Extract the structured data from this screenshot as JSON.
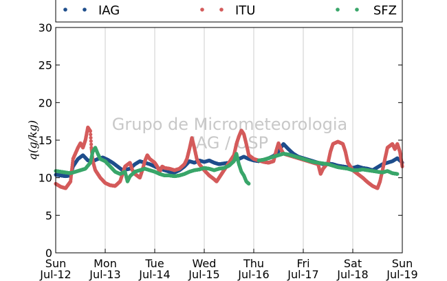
{
  "chart_data": {
    "type": "scatter",
    "title": "",
    "xlabel": "",
    "ylabel": "q(g/kg)",
    "ylim": [
      0,
      30
    ],
    "yticks": [
      0,
      5,
      10,
      15,
      20,
      25,
      30
    ],
    "xlim": [
      0,
      7
    ],
    "xticks": [
      {
        "x": 0,
        "day": "Sun",
        "date": "Jul-12"
      },
      {
        "x": 1,
        "day": "Mon",
        "date": "Jul-13"
      },
      {
        "x": 2,
        "day": "Tue",
        "date": "Jul-14"
      },
      {
        "x": 3,
        "day": "Wed",
        "date": "Jul-15"
      },
      {
        "x": 4,
        "day": "Thu",
        "date": "Jul-16"
      },
      {
        "x": 5,
        "day": "Fri",
        "date": "Jul-17"
      },
      {
        "x": 6,
        "day": "Sat",
        "date": "Jul-18"
      },
      {
        "x": 7,
        "day": "Sun",
        "date": "Jul-19"
      }
    ],
    "grid": "vertical",
    "legend_position": "top",
    "watermark": [
      "Grupo de Micrometeorologia",
      "IAG / USP"
    ],
    "series": [
      {
        "name": "IAG",
        "color": "#1f4e8c",
        "points": [
          [
            0,
            10.4
          ],
          [
            0.2,
            10.2
          ],
          [
            0.3,
            10.3
          ],
          [
            0.35,
            11.5
          ],
          [
            0.45,
            12.5
          ],
          [
            0.55,
            13.0
          ],
          [
            0.65,
            12.3
          ],
          [
            0.75,
            12.2
          ],
          [
            0.85,
            12.5
          ],
          [
            0.95,
            12.7
          ],
          [
            1.05,
            12.4
          ],
          [
            1.15,
            12.0
          ],
          [
            1.25,
            11.5
          ],
          [
            1.35,
            11.0
          ],
          [
            1.5,
            11.2
          ],
          [
            1.6,
            11.8
          ],
          [
            1.7,
            12.2
          ],
          [
            1.8,
            12.0
          ],
          [
            1.9,
            11.8
          ],
          [
            2.0,
            11.5
          ],
          [
            2.1,
            11.2
          ],
          [
            2.2,
            11.0
          ],
          [
            2.3,
            10.8
          ],
          [
            2.4,
            10.7
          ],
          [
            2.5,
            11.0
          ],
          [
            2.6,
            11.5
          ],
          [
            2.7,
            12.2
          ],
          [
            2.8,
            12.0
          ],
          [
            2.9,
            12.3
          ],
          [
            3.0,
            12.1
          ],
          [
            3.1,
            12.3
          ],
          [
            3.2,
            12.0
          ],
          [
            3.3,
            11.8
          ],
          [
            3.4,
            11.9
          ],
          [
            3.5,
            12.0
          ],
          [
            3.6,
            12.3
          ],
          [
            3.65,
            12.6
          ],
          [
            3.7,
            12.5
          ],
          [
            3.8,
            12.8
          ],
          [
            3.9,
            12.5
          ],
          [
            4.0,
            12.3
          ],
          [
            4.1,
            12.2
          ],
          [
            4.2,
            12.4
          ],
          [
            4.3,
            12.6
          ],
          [
            4.4,
            12.9
          ],
          [
            4.5,
            13.5
          ],
          [
            4.6,
            14.5
          ],
          [
            4.7,
            13.8
          ],
          [
            4.8,
            13.2
          ],
          [
            4.9,
            12.8
          ],
          [
            5.0,
            12.6
          ],
          [
            5.1,
            12.4
          ],
          [
            5.2,
            12.2
          ],
          [
            5.3,
            12.0
          ],
          [
            5.4,
            11.8
          ],
          [
            5.5,
            11.9
          ],
          [
            5.6,
            11.8
          ],
          [
            5.7,
            11.6
          ],
          [
            5.8,
            11.5
          ],
          [
            5.9,
            11.4
          ],
          [
            6.0,
            11.3
          ],
          [
            6.1,
            11.5
          ],
          [
            6.2,
            11.3
          ],
          [
            6.3,
            11.2
          ],
          [
            6.4,
            11.0
          ],
          [
            6.5,
            11.4
          ],
          [
            6.6,
            11.8
          ],
          [
            6.7,
            12.0
          ],
          [
            6.8,
            12.2
          ],
          [
            6.9,
            12.6
          ],
          [
            7.0,
            12.0
          ]
        ]
      },
      {
        "name": "ITU",
        "color": "#d45b5b",
        "points": [
          [
            0,
            9.2
          ],
          [
            0.1,
            8.8
          ],
          [
            0.2,
            8.6
          ],
          [
            0.3,
            9.5
          ],
          [
            0.35,
            12.5
          ],
          [
            0.45,
            14.0
          ],
          [
            0.5,
            14.6
          ],
          [
            0.55,
            14.0
          ],
          [
            0.6,
            15.0
          ],
          [
            0.65,
            16.7
          ],
          [
            0.7,
            16.2
          ],
          [
            0.72,
            14.0
          ],
          [
            0.75,
            12.2
          ],
          [
            0.8,
            11.0
          ],
          [
            0.9,
            10.0
          ],
          [
            1.0,
            9.3
          ],
          [
            1.1,
            9.0
          ],
          [
            1.2,
            8.9
          ],
          [
            1.3,
            9.5
          ],
          [
            1.4,
            11.5
          ],
          [
            1.5,
            12.0
          ],
          [
            1.55,
            11.0
          ],
          [
            1.6,
            10.5
          ],
          [
            1.7,
            10.0
          ],
          [
            1.75,
            11.0
          ],
          [
            1.8,
            12.2
          ],
          [
            1.85,
            13.0
          ],
          [
            1.9,
            12.5
          ],
          [
            2.0,
            12.0
          ],
          [
            2.05,
            11.5
          ],
          [
            2.1,
            10.8
          ],
          [
            2.15,
            11.5
          ],
          [
            2.2,
            11.3
          ],
          [
            2.3,
            11.2
          ],
          [
            2.4,
            11.0
          ],
          [
            2.5,
            11.2
          ],
          [
            2.6,
            11.8
          ],
          [
            2.65,
            12.5
          ],
          [
            2.7,
            13.8
          ],
          [
            2.75,
            15.3
          ],
          [
            2.8,
            14.0
          ],
          [
            2.85,
            12.5
          ],
          [
            2.9,
            11.8
          ],
          [
            3.0,
            11.0
          ],
          [
            3.1,
            10.3
          ],
          [
            3.2,
            9.8
          ],
          [
            3.25,
            9.5
          ],
          [
            3.3,
            10.0
          ],
          [
            3.4,
            11.0
          ],
          [
            3.5,
            12.0
          ],
          [
            3.6,
            13.0
          ],
          [
            3.65,
            14.5
          ],
          [
            3.7,
            15.5
          ],
          [
            3.75,
            16.3
          ],
          [
            3.8,
            15.8
          ],
          [
            3.85,
            14.5
          ],
          [
            3.9,
            13.0
          ],
          [
            4.0,
            12.5
          ],
          [
            4.1,
            12.3
          ],
          [
            4.2,
            12.1
          ],
          [
            4.3,
            12.0
          ],
          [
            4.4,
            12.2
          ],
          [
            4.45,
            13.5
          ],
          [
            4.5,
            14.6
          ],
          [
            4.55,
            13.8
          ],
          [
            4.6,
            13.2
          ],
          [
            4.7,
            13.0
          ],
          [
            4.8,
            12.8
          ],
          [
            4.9,
            12.6
          ],
          [
            5.0,
            12.4
          ],
          [
            5.1,
            12.2
          ],
          [
            5.2,
            12.0
          ],
          [
            5.3,
            11.8
          ],
          [
            5.35,
            10.5
          ],
          [
            5.4,
            11.2
          ],
          [
            5.5,
            12.0
          ],
          [
            5.55,
            13.5
          ],
          [
            5.6,
            14.5
          ],
          [
            5.7,
            14.8
          ],
          [
            5.8,
            14.5
          ],
          [
            5.85,
            13.5
          ],
          [
            5.9,
            12.0
          ],
          [
            6.0,
            11.0
          ],
          [
            6.1,
            10.5
          ],
          [
            6.2,
            10.0
          ],
          [
            6.3,
            9.4
          ],
          [
            6.4,
            8.9
          ],
          [
            6.5,
            8.6
          ],
          [
            6.55,
            9.5
          ],
          [
            6.6,
            11.0
          ],
          [
            6.7,
            14.0
          ],
          [
            6.8,
            14.5
          ],
          [
            6.85,
            13.8
          ],
          [
            6.9,
            14.5
          ],
          [
            6.95,
            13.5
          ],
          [
            7.0,
            11.5
          ]
        ]
      },
      {
        "name": "SFZ",
        "color": "#3aa66a",
        "points": [
          [
            0,
            10.9
          ],
          [
            0.1,
            10.8
          ],
          [
            0.2,
            10.7
          ],
          [
            0.3,
            10.6
          ],
          [
            0.4,
            10.8
          ],
          [
            0.5,
            11.0
          ],
          [
            0.6,
            11.2
          ],
          [
            0.7,
            12.0
          ],
          [
            0.75,
            13.5
          ],
          [
            0.8,
            14.0
          ],
          [
            0.85,
            13.2
          ],
          [
            0.9,
            12.5
          ],
          [
            1.0,
            12.2
          ],
          [
            1.1,
            11.5
          ],
          [
            1.2,
            10.8
          ],
          [
            1.3,
            10.5
          ],
          [
            1.4,
            10.8
          ],
          [
            1.45,
            9.5
          ],
          [
            1.5,
            10.2
          ],
          [
            1.6,
            10.8
          ],
          [
            1.7,
            11.0
          ],
          [
            1.8,
            11.2
          ],
          [
            1.9,
            11.0
          ],
          [
            2.0,
            10.8
          ],
          [
            2.1,
            10.5
          ],
          [
            2.2,
            10.3
          ],
          [
            2.3,
            10.3
          ],
          [
            2.4,
            10.2
          ],
          [
            2.5,
            10.3
          ],
          [
            2.6,
            10.5
          ],
          [
            2.7,
            10.8
          ],
          [
            2.8,
            11.0
          ],
          [
            2.9,
            11.1
          ],
          [
            3.0,
            11.3
          ],
          [
            3.1,
            11.2
          ],
          [
            3.2,
            11.0
          ],
          [
            3.3,
            11.2
          ],
          [
            3.4,
            11.3
          ],
          [
            3.5,
            11.6
          ],
          [
            3.6,
            12.2
          ],
          [
            3.65,
            13.2
          ],
          [
            3.7,
            11.8
          ],
          [
            3.75,
            10.8
          ],
          [
            3.8,
            10.3
          ],
          [
            3.85,
            9.5
          ],
          [
            3.9,
            9.2
          ]
        ]
      },
      {
        "name": "SFZ",
        "color": "#3aa66a",
        "points": [
          [
            4.1,
            12.3
          ],
          [
            4.2,
            12.4
          ],
          [
            4.3,
            12.6
          ],
          [
            4.4,
            12.8
          ],
          [
            4.5,
            13.0
          ],
          [
            4.6,
            13.2
          ],
          [
            4.7,
            13.1
          ],
          [
            4.8,
            12.9
          ],
          [
            4.9,
            12.7
          ],
          [
            5.0,
            12.5
          ],
          [
            5.1,
            12.3
          ],
          [
            5.2,
            12.1
          ],
          [
            5.3,
            12.0
          ],
          [
            5.4,
            11.9
          ],
          [
            5.5,
            11.8
          ],
          [
            5.6,
            11.6
          ],
          [
            5.7,
            11.4
          ],
          [
            5.8,
            11.3
          ],
          [
            5.9,
            11.2
          ],
          [
            6.0,
            11.0
          ],
          [
            6.1,
            11.0
          ],
          [
            6.2,
            11.1
          ],
          [
            6.3,
            11.0
          ],
          [
            6.4,
            10.9
          ],
          [
            6.5,
            10.8
          ],
          [
            6.6,
            10.7
          ],
          [
            6.7,
            10.9
          ],
          [
            6.8,
            10.6
          ],
          [
            6.9,
            10.5
          ]
        ]
      }
    ],
    "legend": [
      {
        "name": "IAG",
        "color": "#1f4e8c"
      },
      {
        "name": "ITU",
        "color": "#d45b5b"
      },
      {
        "name": "SFZ",
        "color": "#3aa66a"
      }
    ]
  }
}
